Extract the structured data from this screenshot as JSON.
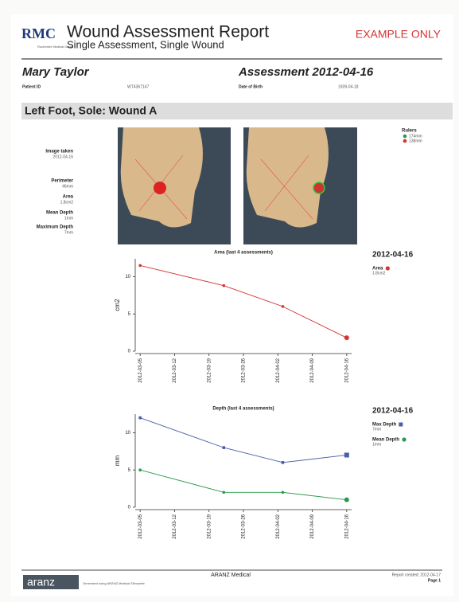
{
  "header": {
    "logo": "RMC",
    "logo_sub": "Rochester Medical Group",
    "title": "Wound Assessment Report",
    "subtitle": "Single Assessment, Single Wound",
    "watermark": "EXAMPLE ONLY"
  },
  "patient": {
    "name": "Mary Taylor",
    "assessment": "Assessment 2012-04-16",
    "id_label": "Patient ID",
    "id_value": "WT4367147",
    "dob_label": "Date of Birth",
    "dob_value": "1939-04-18"
  },
  "section": {
    "title": "Left Foot, Sole: Wound A"
  },
  "measurements": [
    {
      "label": "Image taken",
      "value": "2012-04-16"
    },
    {
      "label": "Perimeter",
      "value": "46mm"
    },
    {
      "label": "Area",
      "value": "1.8cm2"
    },
    {
      "label": "Mean Depth",
      "value": "1mm"
    },
    {
      "label": "Maximum Depth",
      "value": "7mm"
    }
  ],
  "rulers": {
    "title": "Rulers",
    "items": [
      {
        "label": "174mm",
        "color": "#2a9a4a"
      },
      {
        "label": "138mm",
        "color": "#d63333"
      }
    ]
  },
  "chart_data": [
    {
      "type": "line",
      "title": "Area (last 4 assessments)",
      "y_label": "cm2",
      "legend_date": "2012-04-16",
      "x": [
        "2012-03-05",
        "2012-03-22",
        "2012-04-03",
        "2012-04-16"
      ],
      "xlim": [
        "2012-03-04",
        "2012-04-17"
      ],
      "xticks": [
        "2012-03-05",
        "2012-03-12",
        "2012-03-19",
        "2012-03-26",
        "2012-04-02",
        "2012-04-09",
        "2012-04-16"
      ],
      "ylim": [
        0,
        12.4
      ],
      "yticks": [
        0,
        5,
        10
      ],
      "series": [
        {
          "name": "Area",
          "legend_value": "1.8cm2",
          "color": "#d63333",
          "marker": "circle",
          "values": [
            11.5,
            8.8,
            6.0,
            1.8
          ]
        }
      ]
    },
    {
      "type": "line",
      "title": "Depth (last 4 assessments)",
      "y_label": "mm",
      "legend_date": "2012-04-16",
      "x": [
        "2012-03-05",
        "2012-03-22",
        "2012-04-03",
        "2012-04-16"
      ],
      "xlim": [
        "2012-03-04",
        "2012-04-17"
      ],
      "xticks": [
        "2012-03-05",
        "2012-03-12",
        "2012-03-19",
        "2012-03-26",
        "2012-04-02",
        "2012-04-09",
        "2012-04-16"
      ],
      "ylim": [
        0,
        12.5
      ],
      "yticks": [
        0,
        5,
        10
      ],
      "series": [
        {
          "name": "Max Depth",
          "legend_value": "7mm",
          "color": "#4a5fa8",
          "marker": "square",
          "values": [
            12,
            8,
            6,
            7
          ]
        },
        {
          "name": "Mean Depth",
          "legend_value": "1mm",
          "color": "#2a9a4a",
          "marker": "circle",
          "values": [
            5,
            2,
            2,
            1
          ]
        }
      ]
    }
  ],
  "footer": {
    "logo": "aranz",
    "generated": "Generated using ARANZ Medical Silhouette",
    "center": "ARANZ Medical",
    "created": "Report created: 2012-04-17",
    "page": "Page 1"
  }
}
